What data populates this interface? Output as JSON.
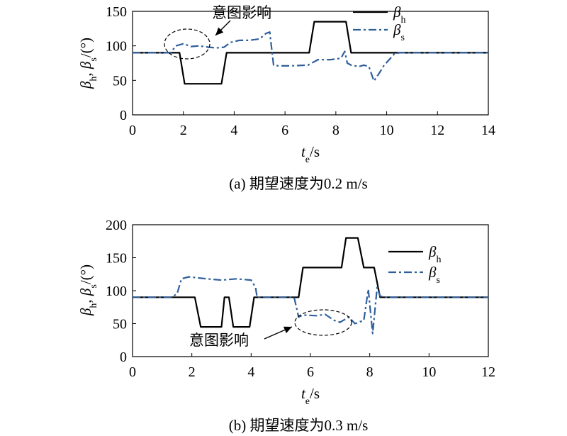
{
  "chart_data": [
    {
      "type": "line",
      "caption": "(a) 期望速度为0.2 m/s",
      "xlabel": {
        "var": "t",
        "sub": "e",
        "unit": "/s"
      },
      "ylabel": {
        "a": "β",
        "a_sub": "h",
        "sep": ", ",
        "b": "β",
        "b_sub": "s",
        "unit": "/(°)"
      },
      "xlim": [
        0,
        14
      ],
      "ylim": [
        0,
        150
      ],
      "xticks": [
        "0",
        "2",
        "4",
        "6",
        "8",
        "10",
        "12",
        "14"
      ],
      "yticks": [
        "0",
        "50",
        "100",
        "150"
      ],
      "legend_position": "top-right",
      "annotation": {
        "text": "意图影响",
        "target": [
          2.9,
          100
        ]
      },
      "series": [
        {
          "name": "β",
          "name_sub": "h",
          "style": "solid",
          "color": "#000000",
          "x": [
            0,
            1.85,
            2.05,
            3.5,
            3.7,
            6.95,
            7.15,
            8.4,
            8.6,
            14
          ],
          "y": [
            90,
            90,
            45,
            45,
            90,
            90,
            135,
            135,
            90,
            90
          ]
        },
        {
          "name": "β",
          "name_sub": "s",
          "style": "dashdot",
          "color": "#2f5f9a",
          "x": [
            0,
            1.5,
            1.7,
            2.0,
            2.3,
            2.6,
            3.0,
            3.3,
            3.6,
            3.85,
            4.2,
            4.6,
            5.0,
            5.25,
            5.4,
            5.55,
            5.75,
            6.2,
            6.9,
            7.3,
            7.8,
            8.2,
            8.35,
            8.45,
            8.6,
            8.9,
            9.1,
            9.3,
            9.5,
            9.7,
            9.9,
            10.1,
            10.3,
            10.5,
            11,
            14
          ],
          "y": [
            90,
            90,
            100,
            103,
            99,
            100,
            98,
            97,
            98,
            105,
            108,
            108,
            110,
            118,
            120,
            72,
            71,
            71,
            72,
            80,
            80,
            82,
            92,
            75,
            72,
            70,
            72,
            70,
            49,
            60,
            72,
            80,
            88,
            90,
            90,
            90
          ]
        }
      ]
    },
    {
      "type": "line",
      "caption": "(b) 期望速度为0.3 m/s",
      "xlabel": {
        "var": "t",
        "sub": "e",
        "unit": "/s"
      },
      "ylabel": {
        "a": "β",
        "a_sub": "h",
        "sep": ", ",
        "b": "β",
        "b_sub": "s",
        "unit": "/(°)"
      },
      "xlim": [
        0,
        12
      ],
      "ylim": [
        0,
        200
      ],
      "xticks": [
        "0",
        "2",
        "4",
        "6",
        "8",
        "10",
        "12"
      ],
      "yticks": [
        "0",
        "50",
        "100",
        "150",
        "200"
      ],
      "legend_position": "top-right",
      "annotation": {
        "text": "意图影响",
        "target": [
          6.0,
          58
        ]
      },
      "series": [
        {
          "name": "β",
          "name_sub": "h",
          "style": "solid",
          "color": "#000000",
          "x": [
            0,
            2.1,
            2.3,
            3.0,
            3.1,
            3.25,
            3.4,
            3.55,
            3.95,
            4.1,
            5.6,
            5.75,
            7.05,
            7.2,
            7.6,
            7.8,
            8.15,
            8.35,
            12
          ],
          "y": [
            90,
            90,
            45,
            45,
            90,
            90,
            45,
            45,
            45,
            90,
            90,
            135,
            135,
            180,
            180,
            135,
            135,
            90,
            90
          ]
        },
        {
          "name": "β",
          "name_sub": "s",
          "style": "dashdot",
          "color": "#2f5f9a",
          "x": [
            0,
            1.3,
            1.5,
            1.65,
            1.9,
            2.5,
            3.0,
            3.5,
            4.0,
            4.15,
            4.2,
            5.45,
            5.6,
            5.75,
            6.2,
            6.5,
            6.8,
            7.0,
            7.3,
            7.5,
            7.8,
            7.95,
            8.1,
            8.25,
            8.35,
            8.5,
            9,
            12
          ],
          "y": [
            90,
            90,
            95,
            118,
            121,
            118,
            116,
            118,
            116,
            105,
            90,
            90,
            60,
            63,
            62,
            64,
            55,
            52,
            60,
            50,
            55,
            102,
            35,
            105,
            92,
            90,
            90,
            90
          ]
        }
      ]
    }
  ]
}
